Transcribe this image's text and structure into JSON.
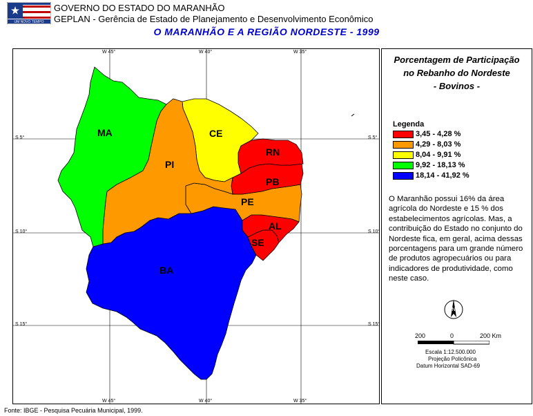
{
  "header": {
    "line1": "GOVERNO DO ESTADO DO MARANHÃO",
    "line2": "GEPLAN - Gerência de Estado de Planejamento e Desenvolvimento Econômico",
    "title": "O MARANHÃO E A REGIÃO NORDESTE - 1999",
    "logo_text": "UM NOVO TEMPO"
  },
  "map": {
    "states": [
      {
        "abbr": "MA",
        "color": "#00ff00"
      },
      {
        "abbr": "PI",
        "color": "#ff9900"
      },
      {
        "abbr": "CE",
        "color": "#ffff00"
      },
      {
        "abbr": "RN",
        "color": "#ff0000"
      },
      {
        "abbr": "PB",
        "color": "#ff0000"
      },
      {
        "abbr": "PE",
        "color": "#ff9900"
      },
      {
        "abbr": "AL",
        "color": "#ff0000"
      },
      {
        "abbr": "SE",
        "color": "#ff0000"
      },
      {
        "abbr": "BA",
        "color": "#0000ff"
      }
    ],
    "grid_lon": [
      "W 45°",
      "W 40°",
      "W 35°"
    ],
    "grid_lat": [
      "S 5°",
      "S 10°",
      "S 15°"
    ]
  },
  "panel": {
    "title": "Porcentagem de Participação no Rebanho do Nordeste - Bovinos -",
    "title_lines": [
      "Porcentagem de Participação",
      "no Rebanho do Nordeste",
      "- Bovinos -"
    ],
    "legend_title": "Legenda",
    "legend": [
      {
        "label": "3,45 - 4,28 %",
        "color": "#ff0000"
      },
      {
        "label": "4,29 - 8,03 %",
        "color": "#ff9900"
      },
      {
        "label": "8,04 - 9,91 %",
        "color": "#ffff00"
      },
      {
        "label": "9,92 - 18,13 %",
        "color": "#00ff00"
      },
      {
        "label": "18,14 - 41,92 %",
        "color": "#0000ff"
      }
    ],
    "text": "O Maranhão possui 16% da área agrícola do Nordeste e 15 % dos estabelecimentos agrícolas. Mas, a contribuição do Estado no conjunto do Nordeste fica, em geral, acima dessas porcentagens para um grande número de produtos agropecuários ou para indicadores de produtividade, como neste caso.",
    "scale_labels": [
      "200",
      "0",
      "200 Km"
    ],
    "scale_text": "Escala 1:12.500.000",
    "projection": "Projeção Policônica",
    "datum": "Datum Horizontal SAD-69"
  },
  "footer": "Fonte: IBGE - Pesquisa Pecuária Municipal, 1999."
}
